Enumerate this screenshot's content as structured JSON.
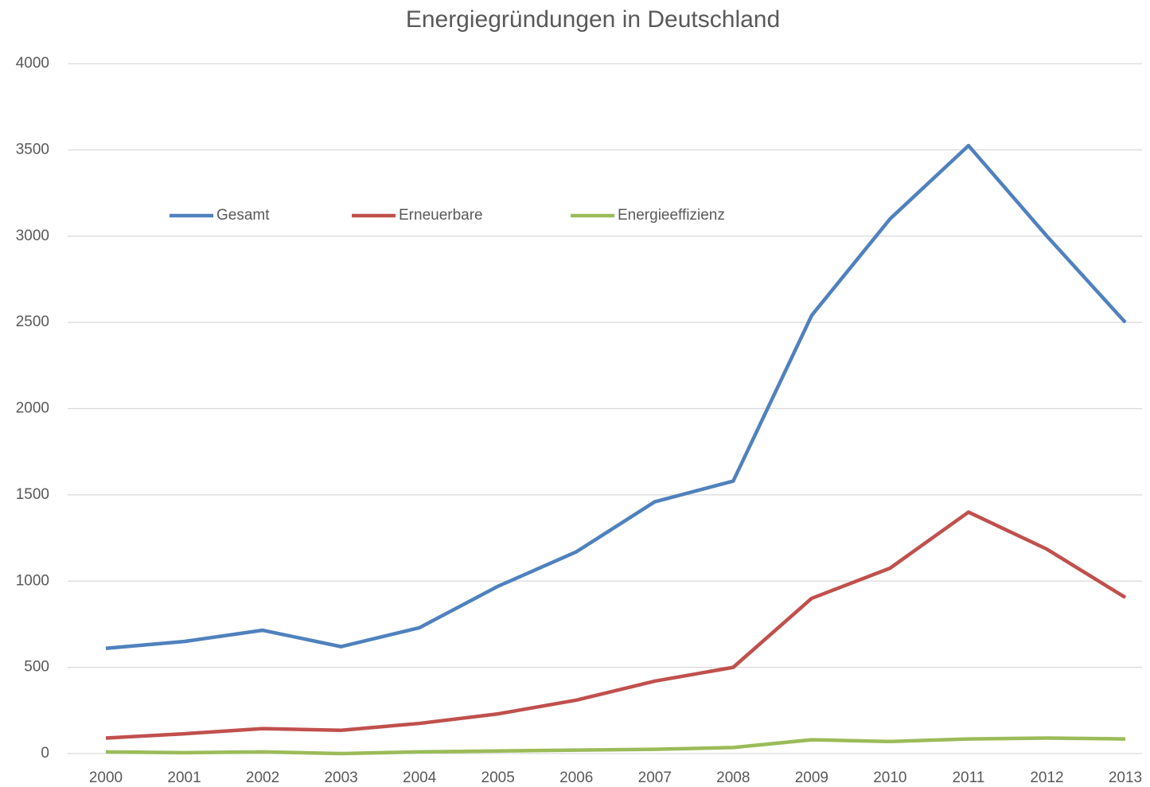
{
  "chart_data": {
    "type": "line",
    "title": "Energiegründungen in Deutschland",
    "categories": [
      "2000",
      "2001",
      "2002",
      "2003",
      "2004",
      "2005",
      "2006",
      "2007",
      "2008",
      "2009",
      "2010",
      "2011",
      "2012",
      "2013"
    ],
    "series": [
      {
        "name": "Gesamt",
        "color": "#4f81bd",
        "values": [
          610,
          650,
          715,
          620,
          730,
          970,
          1170,
          1460,
          1580,
          2540,
          3100,
          3525,
          3000,
          2500
        ]
      },
      {
        "name": "Erneuerbare",
        "color": "#c0504d",
        "values": [
          90,
          115,
          145,
          135,
          175,
          230,
          310,
          420,
          500,
          900,
          1075,
          1400,
          1185,
          905
        ]
      },
      {
        "name": "Energieeffizienz",
        "color": "#9bbb59",
        "values": [
          10,
          5,
          10,
          0,
          10,
          15,
          20,
          25,
          35,
          80,
          70,
          85,
          90,
          85
        ]
      }
    ],
    "ylim": [
      0,
      4000
    ],
    "yticks": [
      0,
      500,
      1000,
      1500,
      2000,
      2500,
      3000,
      3500,
      4000
    ],
    "grid": true,
    "legend": "top"
  }
}
